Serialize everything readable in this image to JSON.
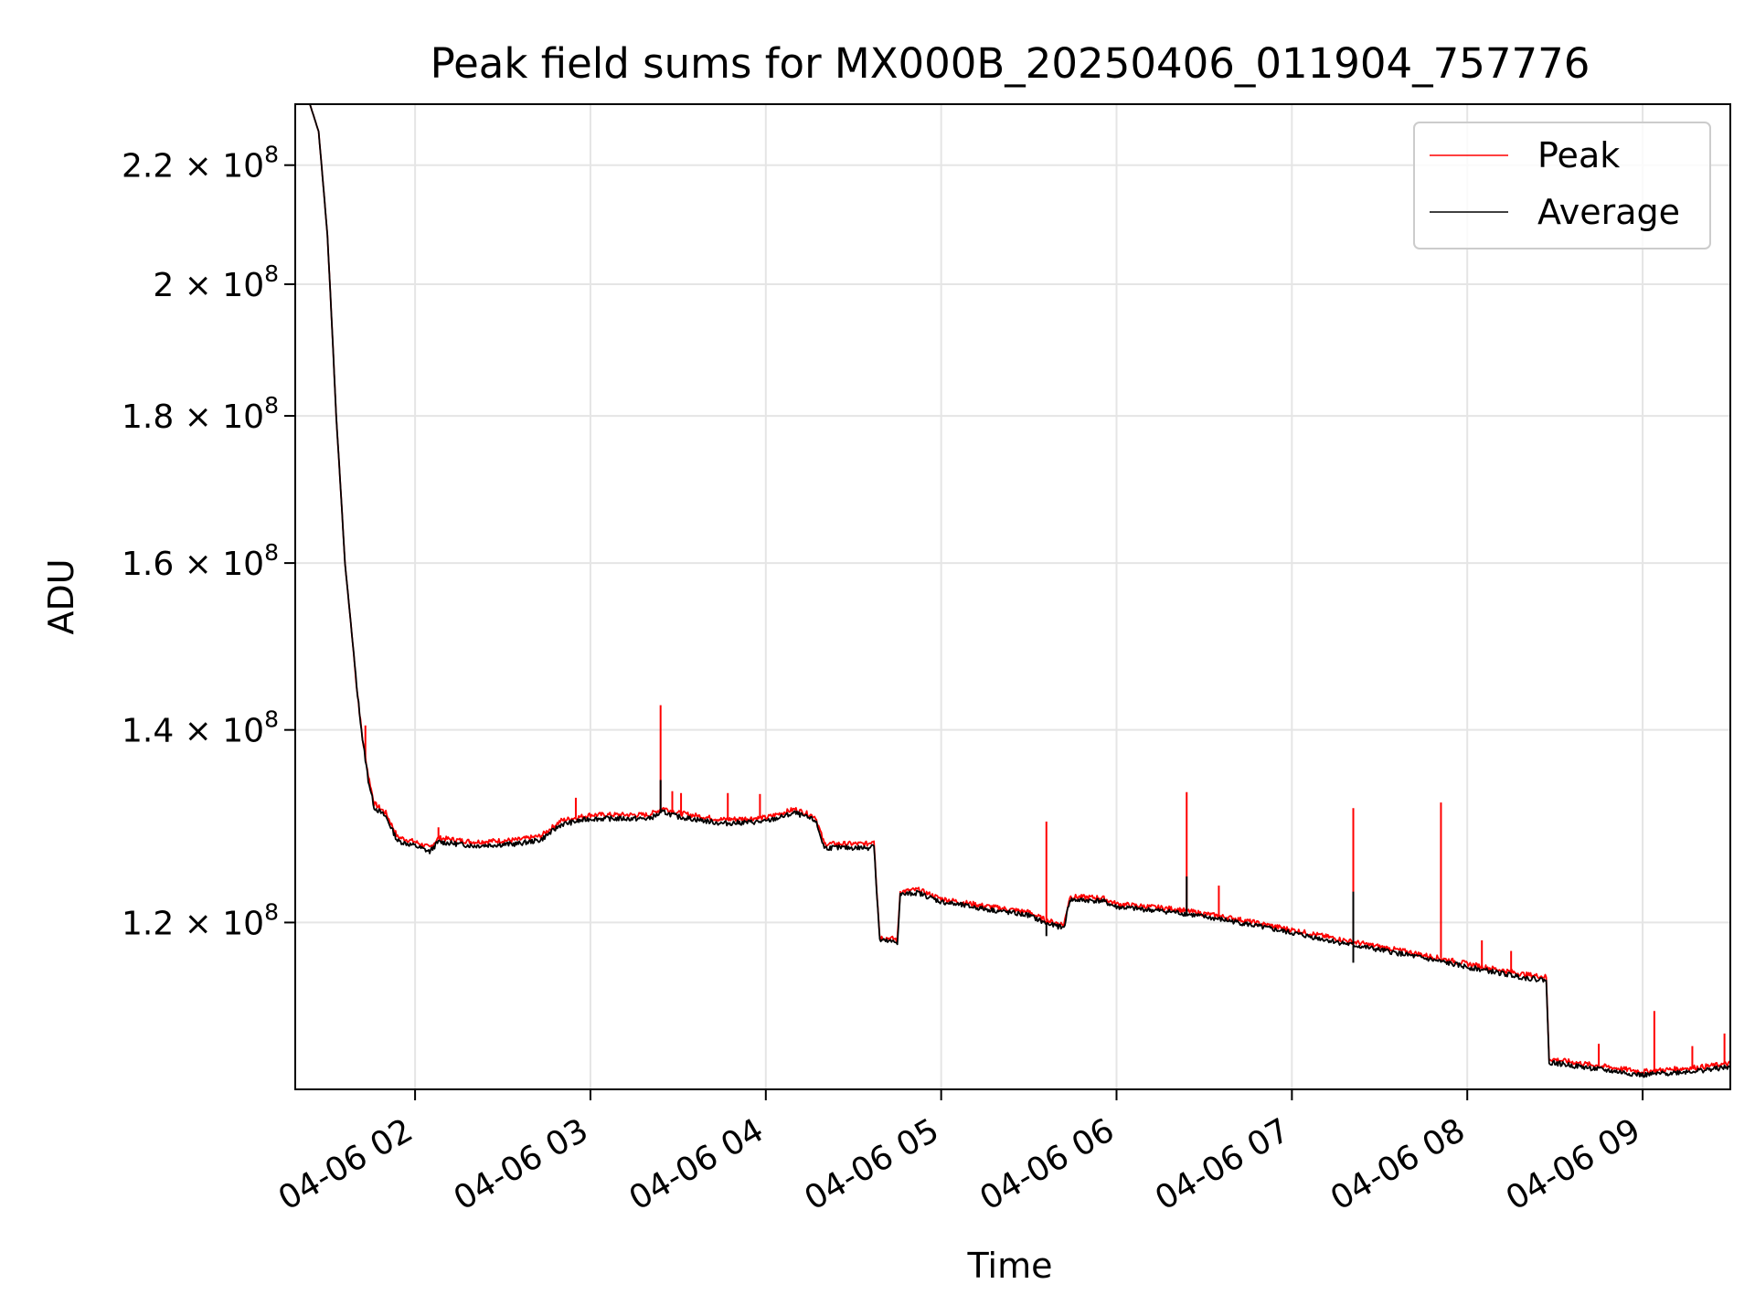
{
  "chart_data": {
    "type": "line",
    "title": "Peak field sums for MX000B_20250406_011904_757776",
    "xlabel": "Time",
    "ylabel": "ADU",
    "yscale": "log",
    "grid": true,
    "legend_position": "top-right",
    "xlim": [
      "2025-04-06 01:19",
      "2025-04-06 09:30"
    ],
    "ylim": [
      105000000,
      231000000
    ],
    "x_ticks": [
      "04-06 02",
      "04-06 03",
      "04-06 04",
      "04-06 05",
      "04-06 06",
      "04-06 07",
      "04-06 08",
      "04-06 09"
    ],
    "y_ticks": [
      {
        "value": 120000000,
        "mantissa": "1.2",
        "exponent": "8"
      },
      {
        "value": 140000000,
        "mantissa": "1.4",
        "exponent": "8"
      },
      {
        "value": 160000000,
        "mantissa": "1.6",
        "exponent": "8"
      },
      {
        "value": 180000000,
        "mantissa": "1.8",
        "exponent": "8"
      },
      {
        "value": 200000000,
        "mantissa": "2",
        "exponent": "8"
      },
      {
        "value": 220000000,
        "mantissa": "2.2",
        "exponent": "8"
      }
    ],
    "series": [
      {
        "name": "Peak",
        "color": "#ff0000",
        "points": [
          [
            "2025-04-06 01:19",
            231000000
          ],
          [
            "2025-04-06 01:24",
            231000000
          ],
          [
            "2025-04-06 01:27",
            226000000
          ],
          [
            "2025-04-06 01:30",
            208000000
          ],
          [
            "2025-04-06 01:33",
            180000000
          ],
          [
            "2025-04-06 01:36",
            160000000
          ],
          [
            "2025-04-06 01:40",
            145000000
          ],
          [
            "2025-04-06 01:42",
            139000000
          ],
          [
            "2025-04-06 01:44",
            135000000
          ],
          [
            "2025-04-06 01:46",
            132000000
          ],
          [
            "2025-04-06 01:50",
            131000000
          ],
          [
            "2025-04-06 01:54",
            128500000
          ],
          [
            "2025-04-06 02:00",
            128000000
          ],
          [
            "2025-04-06 02:05",
            127400000
          ],
          [
            "2025-04-06 02:08",
            128400000
          ],
          [
            "2025-04-06 02:20",
            128000000
          ],
          [
            "2025-04-06 02:35",
            128200000
          ],
          [
            "2025-04-06 02:43",
            128600000
          ],
          [
            "2025-04-06 02:50",
            130200000
          ],
          [
            "2025-04-06 03:00",
            130800000
          ],
          [
            "2025-04-06 03:20",
            130800000
          ],
          [
            "2025-04-06 03:25",
            131500000
          ],
          [
            "2025-04-06 03:30",
            131000000
          ],
          [
            "2025-04-06 03:45",
            130300000
          ],
          [
            "2025-04-06 04:00",
            130500000
          ],
          [
            "2025-04-06 04:10",
            131400000
          ],
          [
            "2025-04-06 04:17",
            130600000
          ],
          [
            "2025-04-06 04:20",
            127800000
          ],
          [
            "2025-04-06 04:35",
            127800000
          ],
          [
            "2025-04-06 04:37",
            128200000
          ],
          [
            "2025-04-06 04:38",
            123000000
          ],
          [
            "2025-04-06 04:39",
            118600000
          ],
          [
            "2025-04-06 04:45",
            118400000
          ],
          [
            "2025-04-06 04:46",
            123000000
          ],
          [
            "2025-04-06 04:52",
            123200000
          ],
          [
            "2025-04-06 05:00",
            122300000
          ],
          [
            "2025-04-06 05:15",
            121600000
          ],
          [
            "2025-04-06 05:30",
            121000000
          ],
          [
            "2025-04-06 05:36",
            120200000
          ],
          [
            "2025-04-06 05:42",
            119800000
          ],
          [
            "2025-04-06 05:44",
            122500000
          ],
          [
            "2025-04-06 05:55",
            122400000
          ],
          [
            "2025-04-06 06:00",
            121800000
          ],
          [
            "2025-04-06 06:20",
            121300000
          ],
          [
            "2025-04-06 06:40",
            120400000
          ],
          [
            "2025-04-06 07:00",
            119300000
          ],
          [
            "2025-04-06 07:20",
            118200000
          ],
          [
            "2025-04-06 07:40",
            117200000
          ],
          [
            "2025-04-06 08:00",
            116100000
          ],
          [
            "2025-04-06 08:20",
            115100000
          ],
          [
            "2025-04-06 08:27",
            114900000
          ],
          [
            "2025-04-06 08:28",
            107600000
          ],
          [
            "2025-04-06 08:45",
            107000000
          ],
          [
            "2025-04-06 09:00",
            106500000
          ],
          [
            "2025-04-06 09:20",
            106900000
          ],
          [
            "2025-04-06 09:30",
            107200000
          ]
        ],
        "spikes": [
          [
            "2025-04-06 01:43",
            140500000
          ],
          [
            "2025-04-06 02:08",
            129500000
          ],
          [
            "2025-04-06 02:55",
            132600000
          ],
          [
            "2025-04-06 03:24",
            142800000
          ],
          [
            "2025-04-06 03:28",
            133300000
          ],
          [
            "2025-04-06 03:31",
            133100000
          ],
          [
            "2025-04-06 03:47",
            133100000
          ],
          [
            "2025-04-06 03:58",
            133000000
          ],
          [
            "2025-04-06 05:36",
            130100000
          ],
          [
            "2025-04-06 06:24",
            133200000
          ],
          [
            "2025-04-06 06:35",
            123600000
          ],
          [
            "2025-04-06 07:21",
            131500000
          ],
          [
            "2025-04-06 07:51",
            132100000
          ],
          [
            "2025-04-06 08:05",
            118300000
          ],
          [
            "2025-04-06 08:15",
            117300000
          ],
          [
            "2025-04-06 08:45",
            108900000
          ],
          [
            "2025-04-06 09:04",
            111800000
          ],
          [
            "2025-04-06 09:17",
            108700000
          ],
          [
            "2025-04-06 09:28",
            109800000
          ]
        ]
      },
      {
        "name": "Average",
        "color": "#000000",
        "points": [
          [
            "2025-04-06 01:19",
            231000000
          ],
          [
            "2025-04-06 01:24",
            231000000
          ],
          [
            "2025-04-06 01:27",
            226000000
          ],
          [
            "2025-04-06 01:30",
            208000000
          ],
          [
            "2025-04-06 01:33",
            180000000
          ],
          [
            "2025-04-06 01:36",
            160000000
          ],
          [
            "2025-04-06 01:40",
            145000000
          ],
          [
            "2025-04-06 01:42",
            139000000
          ],
          [
            "2025-04-06 01:44",
            134500000
          ],
          [
            "2025-04-06 01:46",
            131600000
          ],
          [
            "2025-04-06 01:50",
            130600000
          ],
          [
            "2025-04-06 01:54",
            128100000
          ],
          [
            "2025-04-06 02:00",
            127600000
          ],
          [
            "2025-04-06 02:05",
            127000000
          ],
          [
            "2025-04-06 02:08",
            128000000
          ],
          [
            "2025-04-06 02:20",
            127600000
          ],
          [
            "2025-04-06 02:35",
            127800000
          ],
          [
            "2025-04-06 02:43",
            128200000
          ],
          [
            "2025-04-06 02:50",
            129800000
          ],
          [
            "2025-04-06 03:00",
            130400000
          ],
          [
            "2025-04-06 03:20",
            130400000
          ],
          [
            "2025-04-06 03:25",
            131100000
          ],
          [
            "2025-04-06 03:30",
            130600000
          ],
          [
            "2025-04-06 03:45",
            129900000
          ],
          [
            "2025-04-06 04:00",
            130100000
          ],
          [
            "2025-04-06 04:10",
            131000000
          ],
          [
            "2025-04-06 04:17",
            130200000
          ],
          [
            "2025-04-06 04:20",
            127400000
          ],
          [
            "2025-04-06 04:35",
            127400000
          ],
          [
            "2025-04-06 04:37",
            127800000
          ],
          [
            "2025-04-06 04:38",
            122700000
          ],
          [
            "2025-04-06 04:39",
            118300000
          ],
          [
            "2025-04-06 04:45",
            118100000
          ],
          [
            "2025-04-06 04:46",
            122700000
          ],
          [
            "2025-04-06 04:52",
            122900000
          ],
          [
            "2025-04-06 05:00",
            122000000
          ],
          [
            "2025-04-06 05:15",
            121300000
          ],
          [
            "2025-04-06 05:30",
            120700000
          ],
          [
            "2025-04-06 05:36",
            119900000
          ],
          [
            "2025-04-06 05:42",
            119500000
          ],
          [
            "2025-04-06 05:44",
            122200000
          ],
          [
            "2025-04-06 05:55",
            122100000
          ],
          [
            "2025-04-06 06:00",
            121500000
          ],
          [
            "2025-04-06 06:20",
            121000000
          ],
          [
            "2025-04-06 06:40",
            120100000
          ],
          [
            "2025-04-06 07:00",
            119000000
          ],
          [
            "2025-04-06 07:20",
            117900000
          ],
          [
            "2025-04-06 07:40",
            116900000
          ],
          [
            "2025-04-06 08:00",
            115800000
          ],
          [
            "2025-04-06 08:20",
            114800000
          ],
          [
            "2025-04-06 08:27",
            114600000
          ],
          [
            "2025-04-06 08:28",
            107300000
          ],
          [
            "2025-04-06 08:45",
            106700000
          ],
          [
            "2025-04-06 09:00",
            106200000
          ],
          [
            "2025-04-06 09:20",
            106600000
          ],
          [
            "2025-04-06 09:30",
            106900000
          ]
        ],
        "spikes": [
          [
            "2025-04-06 03:24",
            134500000
          ],
          [
            "2025-04-06 06:24",
            124500000
          ],
          [
            "2025-04-06 07:21",
            123000000
          ],
          [
            "2025-04-06 05:36",
            118700000
          ],
          [
            "2025-04-06 07:21",
            116200000
          ]
        ]
      }
    ]
  }
}
